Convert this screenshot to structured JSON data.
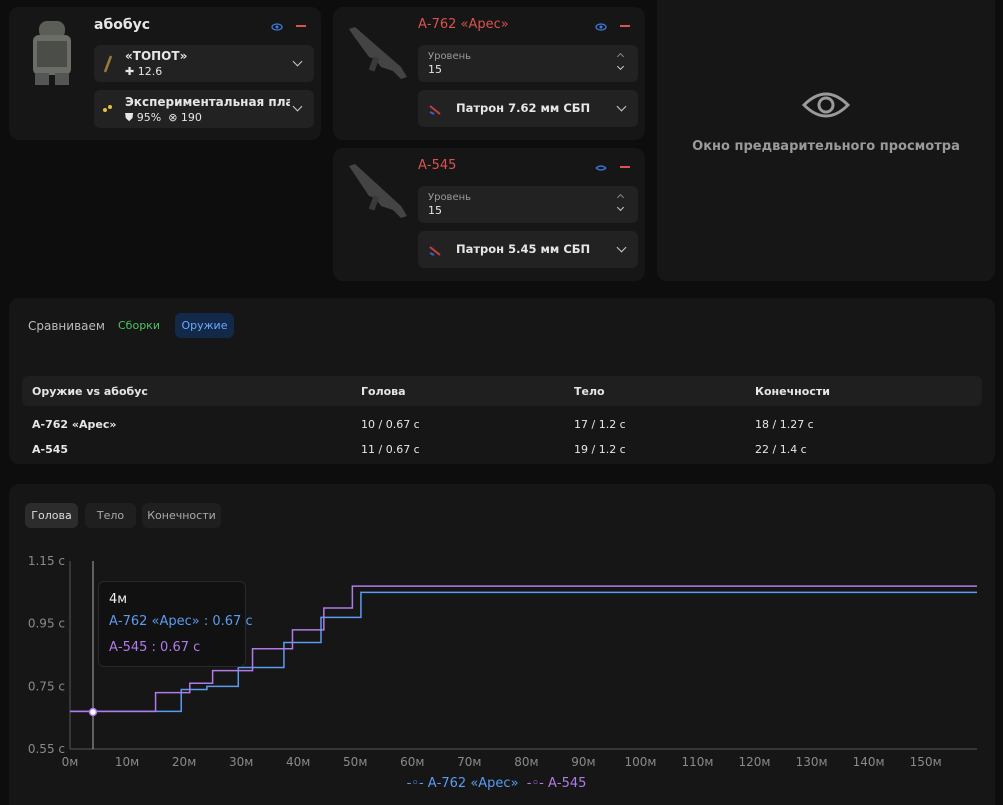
{
  "colors": {
    "series1": "#5b9bf0",
    "series2": "#b07be8",
    "accent_red": "#d9534f",
    "green": "#4cc35e",
    "blue_text": "#6ea8ff"
  },
  "build": {
    "name": "абобус",
    "armor": {
      "name": "«ТОПОТ»",
      "stat": "12.6"
    },
    "plate": {
      "name": "Экспериментальная пласт...",
      "durability": "95%",
      "armor_value": "190"
    }
  },
  "weapons": [
    {
      "name": "А-762 «Арес»",
      "level_label": "Уровень",
      "level": "15",
      "ammo": "Патрон 7.62 мм СБП"
    },
    {
      "name": "А-545",
      "level_label": "Уровень",
      "level": "15",
      "ammo": "Патрон 5.45 мм СБП"
    }
  ],
  "preview": {
    "text": "Окно предварительного просмотра"
  },
  "compare": {
    "label": "Сравниваем",
    "tabs": [
      "Сборки",
      "Оружие"
    ],
    "headers": [
      "Оружие vs абобус",
      "Голова",
      "Тело",
      "Конечности"
    ],
    "rows": [
      [
        "А-762 «Арес»",
        "10 / 0.67 с",
        "17 / 1.2 с",
        "18 / 1.27 с"
      ],
      [
        "А-545",
        "11 / 0.67 с",
        "19 / 1.2 с",
        "22 / 1.4 с"
      ]
    ]
  },
  "chart_tabs": [
    "Голова",
    "Тело",
    "Конечности"
  ],
  "tooltip": {
    "distance": "4м",
    "line1": "А-762 «Арес» : 0.67 с",
    "line2": "А-545 : 0.67 с"
  },
  "chart_data": {
    "type": "line",
    "x_ticks": [
      "0м",
      "10м",
      "20м",
      "30м",
      "40м",
      "50м",
      "60м",
      "70м",
      "80м",
      "90м",
      "100м",
      "110м",
      "120м",
      "130м",
      "140м",
      "150м"
    ],
    "y_ticks": [
      "0.55 с",
      "0.75 с",
      "0.95 с",
      "1.15 с"
    ],
    "xlim": [
      0,
      159
    ],
    "ylim": [
      0.55,
      1.15
    ],
    "legend": "bottom-center",
    "series": [
      {
        "name": "А-762 «Арес»",
        "steps": [
          [
            0,
            0.67
          ],
          [
            19.5,
            0.74
          ],
          [
            24,
            0.75
          ],
          [
            29.5,
            0.81
          ],
          [
            37.5,
            0.89
          ],
          [
            44,
            0.97
          ],
          [
            51,
            1.05
          ],
          [
            159,
            1.05
          ]
        ]
      },
      {
        "name": "А-545",
        "steps": [
          [
            0,
            0.67
          ],
          [
            15,
            0.73
          ],
          [
            21,
            0.76
          ],
          [
            25,
            0.8
          ],
          [
            32,
            0.87
          ],
          [
            39,
            0.93
          ],
          [
            44.5,
            1.0
          ],
          [
            49.5,
            1.07
          ],
          [
            159,
            1.07
          ]
        ]
      }
    ]
  }
}
